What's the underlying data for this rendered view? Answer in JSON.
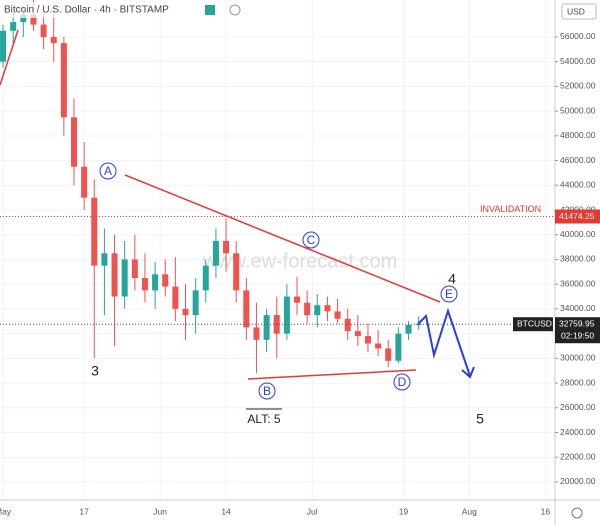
{
  "chart_data": {
    "type": "candlestick",
    "title": "Bitcoin / U.S. Dollar · 4h · BITSTAMP",
    "currency": "USD",
    "symbol": "BTCUSD",
    "last_price": {
      "value": 32759.95,
      "label": "32759.95"
    },
    "countdown": "02:19:50",
    "invalidation": {
      "text": "INVALIDATION",
      "value": 41474.25,
      "label": "41474.25"
    },
    "watermark": "www.ew-forecast.com",
    "annotations": {
      "wave_A": "A",
      "wave_B": "B",
      "wave_C": "C",
      "wave_D": "D",
      "wave_E": "E",
      "wave_4": "4",
      "wave_3": "3",
      "wave_5": "5",
      "alt": "ALT: 5"
    },
    "up_color": "#26a69a",
    "down_color": "#ef5350",
    "x": [
      0,
      2,
      4,
      6,
      8,
      10,
      12,
      14,
      16,
      18,
      20,
      22,
      24,
      26,
      28,
      30,
      32,
      34,
      36,
      38,
      40,
      42,
      44,
      46,
      48,
      50,
      52,
      54,
      56,
      58,
      60,
      62,
      64,
      66,
      68,
      70,
      72,
      74,
      76,
      78,
      80,
      82
    ],
    "open": [
      54000,
      56500,
      57200,
      57800,
      57000,
      56000,
      55500,
      49500,
      45500,
      43000,
      37500,
      38500,
      35000,
      38000,
      36500,
      35500,
      36800,
      35800,
      34000,
      33500,
      35500,
      37500,
      39500,
      38500,
      35500,
      32500,
      31500,
      33500,
      32000,
      35000,
      34500,
      33500,
      34300,
      33800,
      33200,
      32200,
      31800,
      31200,
      30800,
      29800,
      32000,
      32700
    ],
    "high": [
      57000,
      58000,
      58500,
      59000,
      58200,
      58500,
      56000,
      51000,
      47500,
      44500,
      40500,
      40000,
      39500,
      40000,
      38500,
      37800,
      38000,
      38200,
      36000,
      36500,
      38000,
      40500,
      41300,
      39500,
      36500,
      34500,
      34000,
      35000,
      36000,
      36600,
      35500,
      35200,
      35000,
      34800,
      34000,
      33500,
      32800,
      32300,
      31500,
      32500,
      33000,
      33400
    ],
    "low": [
      53500,
      55500,
      56000,
      56500,
      55000,
      54000,
      48000,
      44000,
      42000,
      30000,
      33500,
      31000,
      34000,
      35500,
      34500,
      34000,
      35000,
      33000,
      31500,
      32000,
      34500,
      36500,
      37000,
      34500,
      31500,
      28800,
      30500,
      30000,
      31500,
      33500,
      32800,
      32500,
      33000,
      32800,
      31500,
      31000,
      30500,
      30200,
      29300,
      29600,
      31500,
      32300
    ],
    "close": [
      56500,
      57200,
      57800,
      57000,
      56000,
      55500,
      49500,
      45500,
      43000,
      37500,
      38500,
      35000,
      38000,
      36500,
      35500,
      36800,
      35800,
      34000,
      33500,
      35500,
      37500,
      39500,
      38500,
      35500,
      32500,
      31500,
      33500,
      32000,
      35000,
      34500,
      33500,
      34300,
      33800,
      33200,
      32200,
      31800,
      31200,
      30800,
      29800,
      32000,
      32700,
      32760
    ],
    "xlim": [
      -0.6,
      108.9
    ],
    "xticks": [
      {
        "value": 0,
        "label": "May"
      },
      {
        "value": 16,
        "label": "17"
      },
      {
        "value": 31,
        "label": "Jun"
      },
      {
        "value": 44,
        "label": "14"
      },
      {
        "value": 61,
        "label": "Jul"
      },
      {
        "value": 79,
        "label": "19"
      },
      {
        "value": 92,
        "label": "Aug"
      },
      {
        "value": 107,
        "label": "16"
      }
    ],
    "ylim": [
      18540,
      58990
    ],
    "yticks": [
      {
        "value": 20000,
        "label": "20000.00"
      },
      {
        "value": 22000,
        "label": "22000.00"
      },
      {
        "value": 24000,
        "label": "24000.00"
      },
      {
        "value": 26000,
        "label": "26000.00"
      },
      {
        "value": 28000,
        "label": "28000.00"
      },
      {
        "value": 30000,
        "label": "30000.00"
      },
      {
        "value": 32000,
        "label": "32000.00"
      },
      {
        "value": 34000,
        "label": "34000.00"
      },
      {
        "value": 36000,
        "label": "36000.00"
      },
      {
        "value": 38000,
        "label": "38000.00"
      },
      {
        "value": 40000,
        "label": "40000.00"
      },
      {
        "value": 42000,
        "label": "42000.00"
      },
      {
        "value": 44000,
        "label": "44000.00"
      },
      {
        "value": 46000,
        "label": "46000.00"
      },
      {
        "value": 48000,
        "label": "48000.00"
      },
      {
        "value": 50000,
        "label": "50000.00"
      },
      {
        "value": 52000,
        "label": "52000.00"
      },
      {
        "value": 54000,
        "label": "54000.00"
      },
      {
        "value": 56000,
        "label": "56000.00"
      }
    ]
  }
}
